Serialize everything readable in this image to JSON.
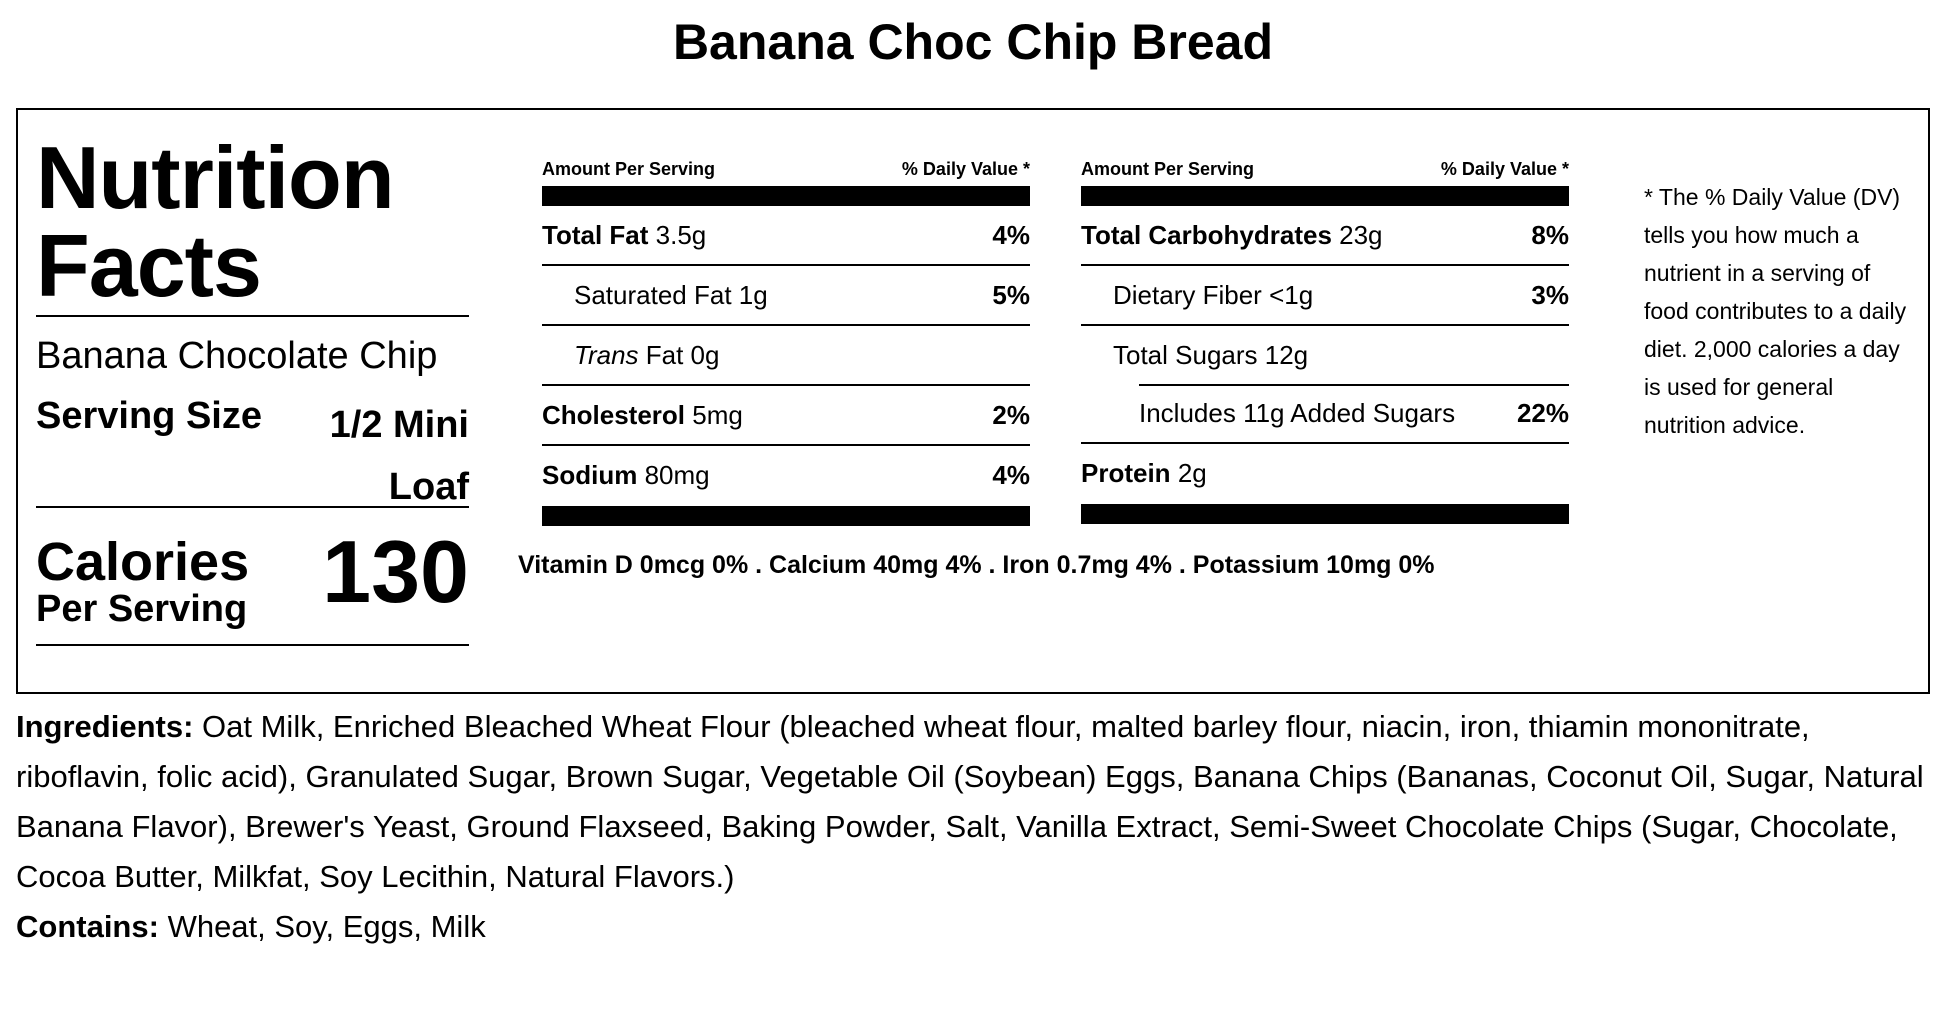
{
  "title": "Banana Choc Chip Bread",
  "nutrition": {
    "heading": "Nutrition Facts",
    "product_name": "Banana Chocolate Chip",
    "serving_size_label": "Serving Size",
    "serving_size_value": "1/2 Mini Loaf",
    "calories_label": "Calories",
    "calories_sub": "Per Serving",
    "calories_value": "130",
    "col_head_left": "Amount Per Serving",
    "col_head_right": "% Daily Value *",
    "left_rows": [
      {
        "name": "Total Fat",
        "amount": "3.5g",
        "dv": "4%"
      },
      {
        "name": "Saturated Fat",
        "amount": "1g",
        "dv": "5%"
      },
      {
        "name": "Trans",
        "amount": "Fat 0g",
        "dv": ""
      },
      {
        "name": "Cholesterol",
        "amount": "5mg",
        "dv": "2%"
      },
      {
        "name": "Sodium",
        "amount": "80mg",
        "dv": "4%"
      }
    ],
    "right_rows": [
      {
        "name": "Total Carbohydrates",
        "amount": "23g",
        "dv": "8%"
      },
      {
        "name": "Dietary Fiber",
        "amount": "<1g",
        "dv": "3%"
      },
      {
        "name": "Total Sugars",
        "amount": "12g",
        "dv": ""
      },
      {
        "name": "Includes 11g Added Sugars",
        "amount": "",
        "dv": "22%"
      },
      {
        "name": "Protein",
        "amount": "2g",
        "dv": ""
      }
    ],
    "vitamins": "Vitamin D 0mcg 0% . Calcium 40mg 4% . Iron 0.7mg 4% . Potassium 10mg 0%",
    "dv_note": "* The % Daily Value (DV) tells you how much a nutrient in a serving of food contributes to a daily diet. 2,000 calories a day is used for general nutrition advice."
  },
  "ingredients": {
    "label": "Ingredients:",
    "text": "Oat Milk, Enriched Bleached Wheat Flour (bleached wheat flour, malted barley flour, niacin, iron, thiamin mononitrate, riboflavin, folic acid), Granulated Sugar, Brown Sugar, Vegetable Oil (Soybean) Eggs, Banana Chips (Bananas, Coconut Oil, Sugar, Natural Banana Flavor), Brewer's Yeast, Ground Flaxseed, Baking Powder, Salt, Vanilla Extract, Semi-Sweet Chocolate Chips (Sugar, Chocolate, Cocoa Butter, Milkfat, Soy Lecithin, Natural Flavors.)",
    "contains_label": "Contains:",
    "contains_text": "Wheat, Soy, Eggs, Milk"
  }
}
